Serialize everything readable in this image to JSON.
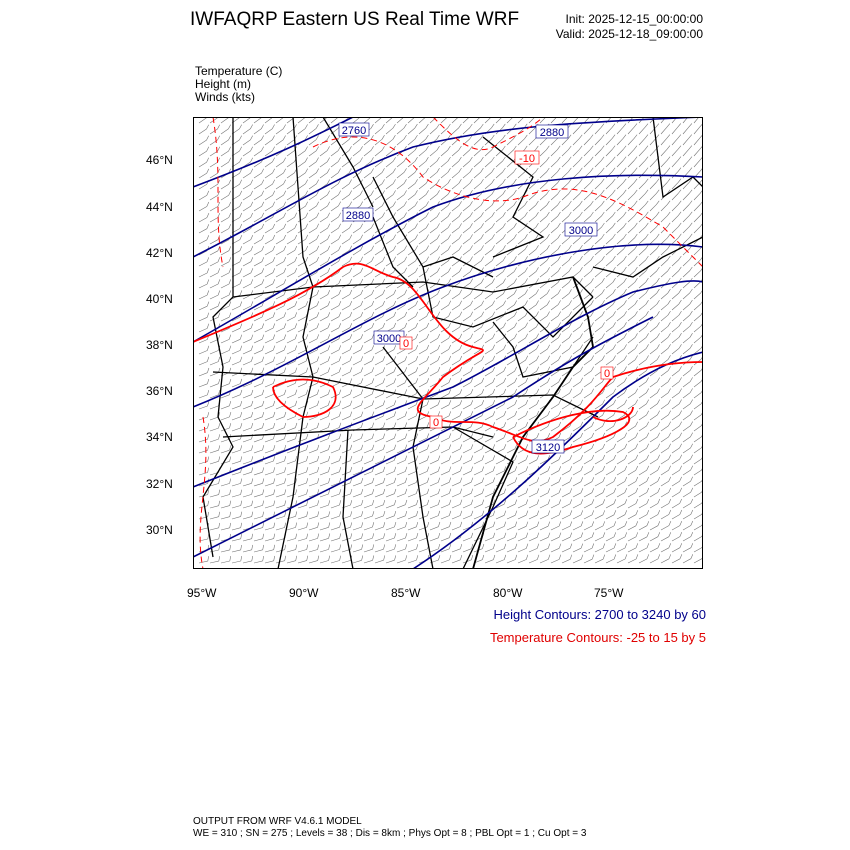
{
  "header": {
    "title": "IWFAQRP Eastern US Real Time WRF",
    "init": "Init: 2025-12-15_00:00:00",
    "valid": "Valid: 2025-12-18_09:00:00"
  },
  "fields": [
    {
      "label": "Temperature   (C)"
    },
    {
      "label": "Height   (m)"
    },
    {
      "label": "Winds   (kts)"
    }
  ],
  "map": {
    "lat_labels": [
      "46°N",
      "44°N",
      "42°N",
      "40°N",
      "38°N",
      "36°N",
      "34°N",
      "32°N",
      "30°N"
    ],
    "lon_labels": [
      "95°W",
      "90°W",
      "85°W",
      "80°W",
      "75°W"
    ],
    "height_contour_labels": [
      "2760",
      "2880",
      "2880",
      "3000",
      "3000",
      "3120"
    ],
    "temperature_contour_labels": [
      "-10",
      "0",
      "0",
      "0"
    ],
    "colors": {
      "height": "#00008b",
      "temperature": "#ff0000",
      "boundaries": "#000000"
    }
  },
  "legend": {
    "height_contours": "Height Contours: 2700 to 3240 by 60",
    "temperature_contours": "Temperature Contours: -25 to 15 by 5"
  },
  "footer": {
    "line1": "OUTPUT FROM WRF V4.6.1 MODEL",
    "line2": "WE = 310 ; SN = 275 ; Levels = 38 ; Dis = 8km ; Phys Opt = 8 ; PBL Opt = 1 ; Cu Opt = 3"
  }
}
